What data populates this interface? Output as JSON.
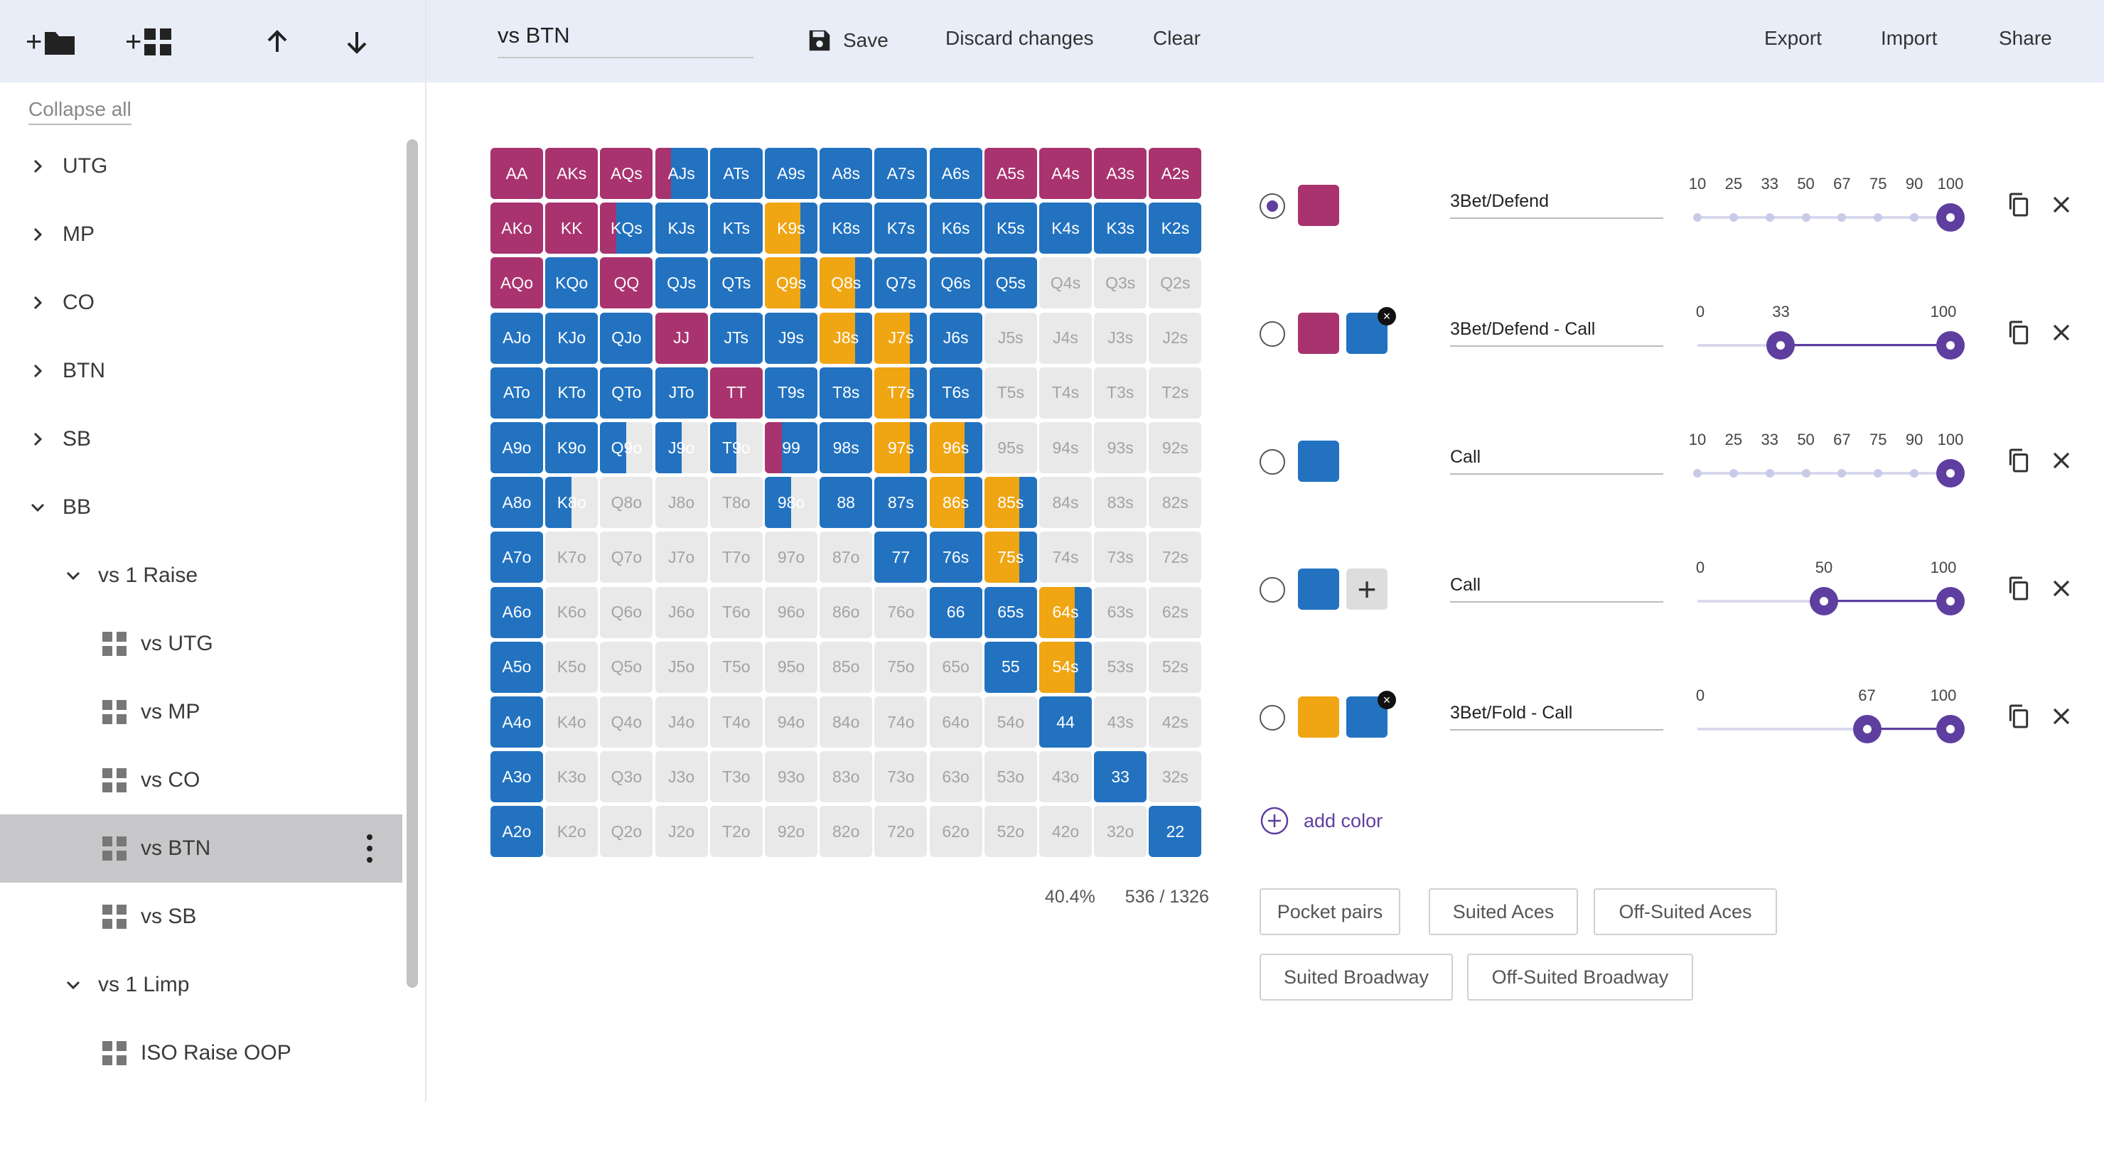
{
  "colors": {
    "raise": "#a8336f",
    "call": "#2272c0",
    "fold": "#f0a512",
    "empty": "#e9e9e9",
    "accent": "#5e3fa0"
  },
  "sidebar": {
    "collapse_all": "Collapse all",
    "items": [
      {
        "label": "UTG",
        "level": 0,
        "type": "folder",
        "expanded": false
      },
      {
        "label": "MP",
        "level": 0,
        "type": "folder",
        "expanded": false
      },
      {
        "label": "CO",
        "level": 0,
        "type": "folder",
        "expanded": false
      },
      {
        "label": "BTN",
        "level": 0,
        "type": "folder",
        "expanded": false
      },
      {
        "label": "SB",
        "level": 0,
        "type": "folder",
        "expanded": false
      },
      {
        "label": "BB",
        "level": 0,
        "type": "folder",
        "expanded": true
      },
      {
        "label": "vs 1 Raise",
        "level": 1,
        "type": "folder",
        "expanded": true
      },
      {
        "label": "vs UTG",
        "level": 2,
        "type": "range"
      },
      {
        "label": "vs MP",
        "level": 2,
        "type": "range"
      },
      {
        "label": "vs CO",
        "level": 2,
        "type": "range"
      },
      {
        "label": "vs BTN",
        "level": 2,
        "type": "range",
        "selected": true
      },
      {
        "label": "vs SB",
        "level": 2,
        "type": "range"
      },
      {
        "label": "vs 1 Limp",
        "level": 1,
        "type": "folder",
        "expanded": true
      },
      {
        "label": "ISO Raise OOP",
        "level": 2,
        "type": "range"
      }
    ]
  },
  "header": {
    "range_name": "vs BTN",
    "save": "Save",
    "discard": "Discard changes",
    "clear": "Clear",
    "export": "Export",
    "import": "Import",
    "share": "Share"
  },
  "grid": {
    "ranks": [
      "A",
      "K",
      "Q",
      "J",
      "T",
      "9",
      "8",
      "7",
      "6",
      "5",
      "4",
      "3",
      "2"
    ],
    "cells": {
      "AA": [
        [
          "r",
          1
        ]
      ],
      "AKs": [
        [
          "r",
          1
        ]
      ],
      "AQs": [
        [
          "r",
          1
        ]
      ],
      "AJs": [
        [
          "r",
          0.3
        ],
        [
          "c",
          0.7
        ]
      ],
      "ATs": [
        [
          "c",
          1
        ]
      ],
      "A9s": [
        [
          "c",
          1
        ]
      ],
      "A8s": [
        [
          "c",
          1
        ]
      ],
      "A7s": [
        [
          "c",
          1
        ]
      ],
      "A6s": [
        [
          "c",
          1
        ]
      ],
      "A5s": [
        [
          "r",
          1
        ]
      ],
      "A4s": [
        [
          "r",
          1
        ]
      ],
      "A3s": [
        [
          "r",
          1
        ]
      ],
      "A2s": [
        [
          "r",
          1
        ]
      ],
      "AKo": [
        [
          "r",
          1
        ]
      ],
      "KK": [
        [
          "r",
          1
        ]
      ],
      "KQs": [
        [
          "r",
          0.3
        ],
        [
          "c",
          0.7
        ]
      ],
      "KJs": [
        [
          "c",
          1
        ]
      ],
      "KTs": [
        [
          "c",
          1
        ]
      ],
      "K9s": [
        [
          "f",
          0.67
        ],
        [
          "c",
          0.33
        ]
      ],
      "K8s": [
        [
          "c",
          1
        ]
      ],
      "K7s": [
        [
          "c",
          1
        ]
      ],
      "K6s": [
        [
          "c",
          1
        ]
      ],
      "K5s": [
        [
          "c",
          1
        ]
      ],
      "K4s": [
        [
          "c",
          1
        ]
      ],
      "K3s": [
        [
          "c",
          1
        ]
      ],
      "K2s": [
        [
          "c",
          1
        ]
      ],
      "AQo": [
        [
          "r",
          1
        ]
      ],
      "KQo": [
        [
          "c",
          1
        ]
      ],
      "QQ": [
        [
          "r",
          1
        ]
      ],
      "QJs": [
        [
          "c",
          1
        ]
      ],
      "QTs": [
        [
          "c",
          1
        ]
      ],
      "Q9s": [
        [
          "f",
          0.67
        ],
        [
          "c",
          0.33
        ]
      ],
      "Q8s": [
        [
          "f",
          0.67
        ],
        [
          "c",
          0.33
        ]
      ],
      "Q7s": [
        [
          "c",
          1
        ]
      ],
      "Q6s": [
        [
          "c",
          1
        ]
      ],
      "Q5s": [
        [
          "c",
          1
        ]
      ],
      "AJo": [
        [
          "c",
          1
        ]
      ],
      "KJo": [
        [
          "c",
          1
        ]
      ],
      "QJo": [
        [
          "c",
          1
        ]
      ],
      "JJ": [
        [
          "r",
          1
        ]
      ],
      "JTs": [
        [
          "c",
          1
        ]
      ],
      "J9s": [
        [
          "c",
          1
        ]
      ],
      "J8s": [
        [
          "f",
          0.67
        ],
        [
          "c",
          0.33
        ]
      ],
      "J7s": [
        [
          "f",
          0.67
        ],
        [
          "c",
          0.33
        ]
      ],
      "J6s": [
        [
          "c",
          1
        ]
      ],
      "ATo": [
        [
          "c",
          1
        ]
      ],
      "KTo": [
        [
          "c",
          1
        ]
      ],
      "QTo": [
        [
          "c",
          1
        ]
      ],
      "JTo": [
        [
          "c",
          1
        ]
      ],
      "TT": [
        [
          "r",
          1
        ]
      ],
      "T9s": [
        [
          "c",
          1
        ]
      ],
      "T8s": [
        [
          "c",
          1
        ]
      ],
      "T7s": [
        [
          "f",
          0.67
        ],
        [
          "c",
          0.33
        ]
      ],
      "T6s": [
        [
          "c",
          1
        ]
      ],
      "A9o": [
        [
          "c",
          1
        ]
      ],
      "K9o": [
        [
          "c",
          1
        ]
      ],
      "Q9o": [
        [
          "c",
          0.5
        ],
        [
          "e",
          0.5
        ]
      ],
      "J9o": [
        [
          "c",
          0.5
        ],
        [
          "e",
          0.5
        ]
      ],
      "T9o": [
        [
          "c",
          0.5
        ],
        [
          "e",
          0.5
        ]
      ],
      "99": [
        [
          "r",
          0.33
        ],
        [
          "c",
          0.67
        ]
      ],
      "98s": [
        [
          "c",
          1
        ]
      ],
      "97s": [
        [
          "f",
          0.67
        ],
        [
          "c",
          0.33
        ]
      ],
      "96s": [
        [
          "f",
          0.67
        ],
        [
          "c",
          0.33
        ]
      ],
      "A8o": [
        [
          "c",
          1
        ]
      ],
      "K8o": [
        [
          "c",
          0.5
        ],
        [
          "e",
          0.5
        ]
      ],
      "98o": [
        [
          "c",
          0.5
        ],
        [
          "e",
          0.5
        ]
      ],
      "88": [
        [
          "c",
          1
        ]
      ],
      "87s": [
        [
          "c",
          1
        ]
      ],
      "86s": [
        [
          "f",
          0.67
        ],
        [
          "c",
          0.33
        ]
      ],
      "85s": [
        [
          "f",
          0.67
        ],
        [
          "c",
          0.33
        ]
      ],
      "A7o": [
        [
          "c",
          1
        ]
      ],
      "77": [
        [
          "c",
          1
        ]
      ],
      "76s": [
        [
          "c",
          1
        ]
      ],
      "75s": [
        [
          "f",
          0.67
        ],
        [
          "c",
          0.33
        ]
      ],
      "A6o": [
        [
          "c",
          1
        ]
      ],
      "66": [
        [
          "c",
          1
        ]
      ],
      "65s": [
        [
          "c",
          1
        ]
      ],
      "64s": [
        [
          "f",
          0.67
        ],
        [
          "c",
          0.33
        ]
      ],
      "A5o": [
        [
          "c",
          1
        ]
      ],
      "55": [
        [
          "c",
          1
        ]
      ],
      "54s": [
        [
          "f",
          0.67
        ],
        [
          "c",
          0.33
        ]
      ],
      "A4o": [
        [
          "c",
          1
        ]
      ],
      "44": [
        [
          "c",
          1
        ]
      ],
      "A3o": [
        [
          "c",
          1
        ]
      ],
      "33": [
        [
          "c",
          1
        ]
      ],
      "A2o": [
        [
          "c",
          1
        ]
      ],
      "22": [
        [
          "c",
          1
        ]
      ]
    },
    "percent": "40.4%",
    "combos": "536 / 1326"
  },
  "actions": [
    {
      "selected": true,
      "swatches": [
        "raise"
      ],
      "removable": false,
      "add_box": false,
      "name": "3Bet/Defend",
      "slider": {
        "labels": [
          "10",
          "25",
          "33",
          "50",
          "67",
          "75",
          "90",
          "100"
        ],
        "ticks": [
          10,
          25,
          33,
          50,
          67,
          75,
          90,
          100
        ],
        "thumbs": [
          100
        ],
        "mode": "discrete"
      }
    },
    {
      "selected": false,
      "swatches": [
        "raise",
        "call"
      ],
      "removable": true,
      "add_box": false,
      "name": "3Bet/Defend - Call",
      "slider": {
        "labels": [
          "0",
          "33",
          "100"
        ],
        "ticks": [
          0,
          33,
          100
        ],
        "thumbs": [
          33,
          100
        ],
        "mode": "range"
      }
    },
    {
      "selected": false,
      "swatches": [
        "call"
      ],
      "removable": false,
      "add_box": false,
      "name": "Call",
      "slider": {
        "labels": [
          "10",
          "25",
          "33",
          "50",
          "67",
          "75",
          "90",
          "100"
        ],
        "ticks": [
          10,
          25,
          33,
          50,
          67,
          75,
          90,
          100
        ],
        "thumbs": [
          100
        ],
        "mode": "discrete"
      }
    },
    {
      "selected": false,
      "swatches": [
        "call"
      ],
      "removable": false,
      "add_box": true,
      "name": "Call",
      "slider": {
        "labels": [
          "0",
          "50",
          "100"
        ],
        "ticks": [
          0,
          50,
          100
        ],
        "thumbs": [
          50,
          100
        ],
        "mode": "range"
      }
    },
    {
      "selected": false,
      "swatches": [
        "fold",
        "call"
      ],
      "removable": true,
      "add_box": false,
      "name": "3Bet/Fold - Call",
      "slider": {
        "labels": [
          "0",
          "67",
          "100"
        ],
        "ticks": [
          0,
          67,
          100
        ],
        "thumbs": [
          67,
          100
        ],
        "mode": "range"
      }
    }
  ],
  "add_color": "add color",
  "presets": [
    "Pocket pairs",
    "Suited Aces",
    "Off-Suited Aces",
    "Suited Broadway",
    "Off-Suited Broadway"
  ]
}
